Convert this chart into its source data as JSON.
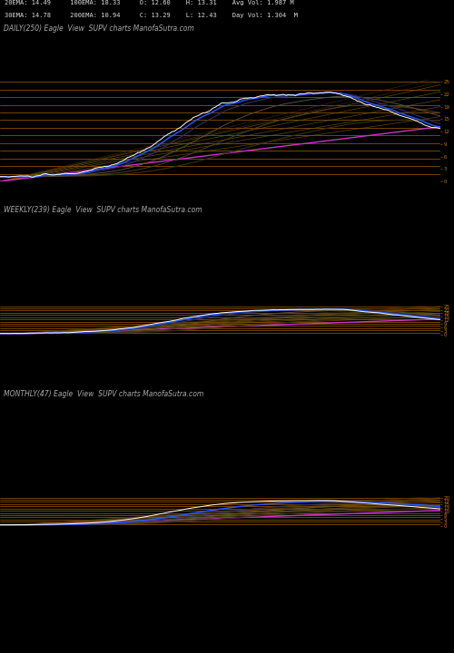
{
  "background_color": "#000000",
  "header_line1": "20EMA: 14.49     100EMA: 18.33     O: 12.60    H: 13.31    Avg Vol: 1.987 M",
  "header_line2": "30EMA: 14.78     200EMA: 10.94     C: 13.29    L: 12.43    Day Vol: 1.304  M",
  "panel1_label": "DAILY(250) Eagle  View  SUPV charts ManofaSutra.com",
  "panel2_label": "WEEKLY(239) Eagle  View  SUPV charts ManofaSutra.com",
  "panel3_label": "MONTHLY(47) Eagle  View  SUPV charts ManofaSutra.com",
  "orange_color": "#c87800",
  "white_color": "#ffffff",
  "blue_color": "#2255ff",
  "magenta_color": "#cc33cc",
  "dark_gold": "#7a5c00",
  "red_color": "#cc2200",
  "header_fontsize": 5.0,
  "label_fontsize": 5.5,
  "n_daily": 250,
  "n_weekly": 239,
  "n_monthly": 47,
  "fig_width": 5.0,
  "fig_height": 7.2
}
